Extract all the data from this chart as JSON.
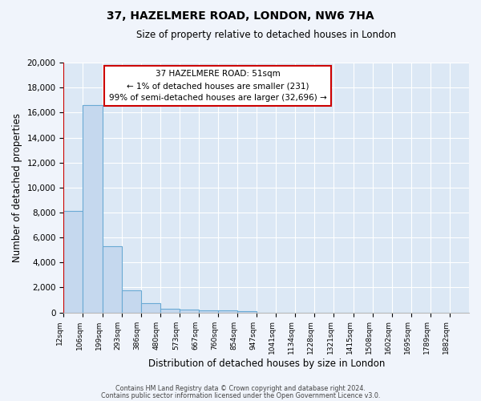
{
  "title": "37, HAZELMERE ROAD, LONDON, NW6 7HA",
  "subtitle": "Size of property relative to detached houses in London",
  "xlabel": "Distribution of detached houses by size in London",
  "ylabel": "Number of detached properties",
  "bar_labels": [
    "12sqm",
    "106sqm",
    "199sqm",
    "293sqm",
    "386sqm",
    "480sqm",
    "573sqm",
    "667sqm",
    "760sqm",
    "854sqm",
    "947sqm",
    "1041sqm",
    "1134sqm",
    "1228sqm",
    "1321sqm",
    "1415sqm",
    "1508sqm",
    "1602sqm",
    "1695sqm",
    "1789sqm",
    "1882sqm"
  ],
  "bar_heights": [
    8100,
    16600,
    5300,
    1800,
    750,
    280,
    200,
    175,
    150,
    100,
    0,
    0,
    0,
    0,
    0,
    0,
    0,
    0,
    0,
    0,
    0
  ],
  "bar_color": "#c5d8ee",
  "bar_edge_color": "#6aaad4",
  "ylim": [
    0,
    20000
  ],
  "yticks": [
    0,
    2000,
    4000,
    6000,
    8000,
    10000,
    12000,
    14000,
    16000,
    18000,
    20000
  ],
  "annotation_line1": "37 HAZELMERE ROAD: 51sqm",
  "annotation_line2": "← 1% of detached houses are smaller (231)",
  "annotation_line3": "99% of semi-detached houses are larger (32,696) →",
  "footer_line1": "Contains HM Land Registry data © Crown copyright and database right 2024.",
  "footer_line2": "Contains public sector information licensed under the Open Government Licence v3.0.",
  "fig_bg_color": "#f0f4fb",
  "plot_bg_color": "#dce8f5",
  "grid_color": "#ffffff",
  "red_line_color": "#cc0000",
  "ann_box_edge_color": "#cc0000",
  "ann_box_face_color": "#ffffff"
}
